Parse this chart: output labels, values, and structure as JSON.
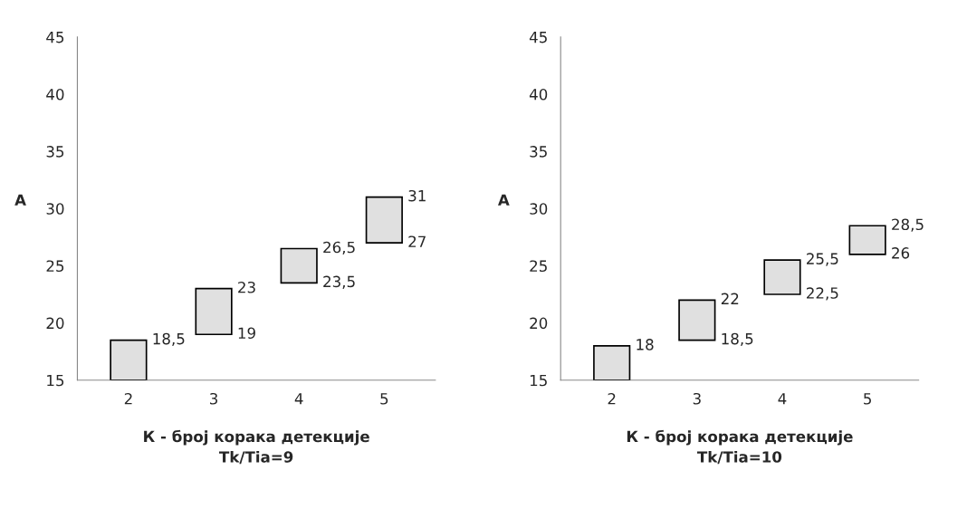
{
  "chart_data": [
    {
      "type": "bar",
      "categories": [
        "2",
        "3",
        "4",
        "5"
      ],
      "base": [
        15,
        19,
        23.5,
        27
      ],
      "values": [
        3.5,
        4,
        3,
        4
      ],
      "color": "#e0e0e0",
      "ylim": [
        15,
        45
      ],
      "yticks": [
        15,
        20,
        25,
        30,
        35,
        40,
        45
      ],
      "ylabel": "A",
      "xlabel": "К - број корака детекције\nTk/Tia=9",
      "grid": false,
      "legend": false,
      "annotations": [
        {
          "text": "18,5",
          "x": "2",
          "y": 18.5
        },
        {
          "text": "23",
          "x": "3",
          "y": 23
        },
        {
          "text": "19",
          "x": "3",
          "y": 19
        },
        {
          "text": "26,5",
          "x": "4",
          "y": 26.5
        },
        {
          "text": "23,5",
          "x": "4",
          "y": 23.5
        },
        {
          "text": "31",
          "x": "5",
          "y": 31
        },
        {
          "text": "27",
          "x": "5",
          "y": 27
        }
      ]
    },
    {
      "type": "bar",
      "categories": [
        "2",
        "3",
        "4",
        "5"
      ],
      "base": [
        15,
        18.5,
        22.5,
        26
      ],
      "values": [
        3,
        3.5,
        3,
        2.5
      ],
      "color": "#e0e0e0",
      "ylim": [
        15,
        45
      ],
      "yticks": [
        15,
        20,
        25,
        30,
        35,
        40,
        45
      ],
      "ylabel": "A",
      "xlabel": "К - број корака детекције\nTk/Tia=10",
      "grid": false,
      "legend": false,
      "annotations": [
        {
          "text": "18",
          "x": "2",
          "y": 18
        },
        {
          "text": "22",
          "x": "3",
          "y": 22
        },
        {
          "text": "18,5",
          "x": "3",
          "y": 18.5
        },
        {
          "text": "25,5",
          "x": "4",
          "y": 25.5
        },
        {
          "text": "22,5",
          "x": "4",
          "y": 22.5
        },
        {
          "text": "28,5",
          "x": "5",
          "y": 28.5
        },
        {
          "text": "26",
          "x": "5",
          "y": 26
        }
      ]
    }
  ]
}
